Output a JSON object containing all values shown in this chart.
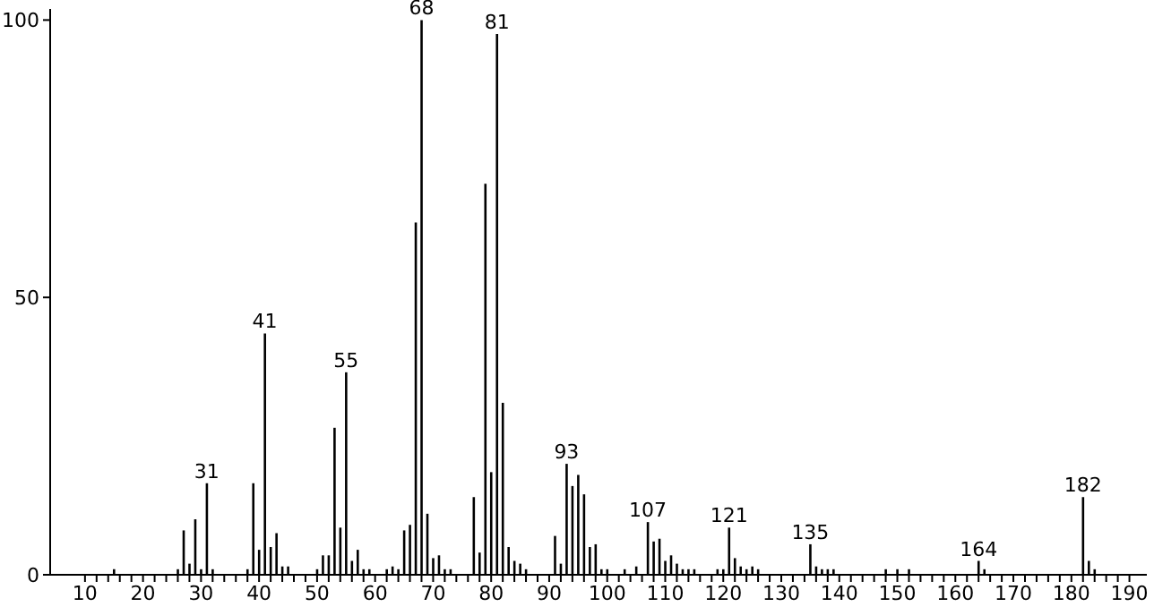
{
  "chart_data": {
    "type": "bar",
    "color": "#000000",
    "x": [
      15,
      26,
      27,
      28,
      29,
      30,
      31,
      32,
      38,
      39,
      40,
      41,
      42,
      43,
      44,
      45,
      50,
      51,
      52,
      53,
      54,
      55,
      56,
      57,
      58,
      59,
      62,
      63,
      64,
      65,
      66,
      67,
      68,
      69,
      70,
      71,
      72,
      73,
      77,
      78,
      79,
      80,
      81,
      82,
      83,
      84,
      85,
      86,
      91,
      92,
      93,
      94,
      95,
      96,
      97,
      98,
      99,
      100,
      103,
      105,
      107,
      108,
      109,
      110,
      111,
      112,
      113,
      114,
      115,
      119,
      120,
      121,
      122,
      123,
      124,
      125,
      126,
      135,
      136,
      137,
      138,
      139,
      148,
      150,
      152,
      164,
      165,
      182,
      183,
      184
    ],
    "values": [
      1,
      1,
      8,
      2,
      10,
      1,
      16.5,
      1,
      1,
      16.5,
      4.5,
      43.5,
      5,
      7.5,
      1.5,
      1.5,
      1,
      3.5,
      3.5,
      26.5,
      8.5,
      36.5,
      2.5,
      4.5,
      1,
      1,
      1,
      1.5,
      1,
      8,
      9,
      63.5,
      100,
      11,
      3,
      3.5,
      1,
      1,
      14,
      4,
      70.5,
      18.5,
      97.5,
      31,
      5,
      2.5,
      2,
      1,
      7,
      2,
      20,
      16,
      18,
      14.5,
      5,
      5.5,
      1,
      1,
      1,
      1.5,
      9.5,
      6,
      6.5,
      2.5,
      3.5,
      2,
      1,
      1,
      1,
      1,
      1,
      8.5,
      3,
      1.5,
      1,
      1.5,
      1,
      5.5,
      1.5,
      1,
      1,
      1,
      1,
      1,
      1,
      2.5,
      1,
      14,
      2.5,
      1
    ],
    "xlim": [
      4,
      193
    ],
    "xticks": [
      10,
      {
        "value": 12,
        "label": null
      },
      {
        "value": 14,
        "label": null
      },
      {
        "value": 16,
        "label": null
      },
      {
        "value": 18,
        "label": null
      },
      20,
      {
        "value": 22,
        "label": null
      },
      {
        "value": 24,
        "label": null
      },
      {
        "value": 26,
        "label": null
      },
      {
        "value": 28,
        "label": null
      },
      30,
      {
        "value": 32,
        "label": null
      },
      {
        "value": 34,
        "label": null
      },
      {
        "value": 36,
        "label": null
      },
      {
        "value": 38,
        "label": null
      },
      40,
      {
        "value": 42,
        "label": null
      },
      {
        "value": 44,
        "label": null
      },
      {
        "value": 46,
        "label": null
      },
      {
        "value": 48,
        "label": null
      },
      50,
      {
        "value": 52,
        "label": null
      },
      {
        "value": 54,
        "label": null
      },
      {
        "value": 56,
        "label": null
      },
      {
        "value": 58,
        "label": null
      },
      60,
      {
        "value": 62,
        "label": null
      },
      {
        "value": 64,
        "label": null
      },
      {
        "value": 66,
        "label": null
      },
      {
        "value": 68,
        "label": null
      },
      70,
      {
        "value": 72,
        "label": null
      },
      {
        "value": 74,
        "label": null
      },
      {
        "value": 76,
        "label": null
      },
      {
        "value": 78,
        "label": null
      },
      80,
      {
        "value": 82,
        "label": null
      },
      {
        "value": 84,
        "label": null
      },
      {
        "value": 86,
        "label": null
      },
      {
        "value": 88,
        "label": null
      },
      90,
      {
        "value": 92,
        "label": null
      },
      {
        "value": 94,
        "label": null
      },
      {
        "value": 96,
        "label": null
      },
      {
        "value": 98,
        "label": null
      },
      100,
      {
        "value": 102,
        "label": null
      },
      {
        "value": 104,
        "label": null
      },
      {
        "value": 106,
        "label": null
      },
      {
        "value": 108,
        "label": null
      },
      110,
      {
        "value": 112,
        "label": null
      },
      {
        "value": 114,
        "label": null
      },
      {
        "value": 116,
        "label": null
      },
      {
        "value": 118,
        "label": null
      },
      120,
      {
        "value": 122,
        "label": null
      },
      {
        "value": 124,
        "label": null
      },
      {
        "value": 126,
        "label": null
      },
      {
        "value": 128,
        "label": null
      },
      130,
      {
        "value": 132,
        "label": null
      },
      {
        "value": 134,
        "label": null
      },
      {
        "value": 136,
        "label": null
      },
      {
        "value": 138,
        "label": null
      },
      140,
      {
        "value": 142,
        "label": null
      },
      {
        "value": 144,
        "label": null
      },
      {
        "value": 146,
        "label": null
      },
      {
        "value": 148,
        "label": null
      },
      150,
      {
        "value": 152,
        "label": null
      },
      {
        "value": 154,
        "label": null
      },
      {
        "value": 156,
        "label": null
      },
      {
        "value": 158,
        "label": null
      },
      160,
      {
        "value": 162,
        "label": null
      },
      {
        "value": 164,
        "label": null
      },
      {
        "value": 166,
        "label": null
      },
      {
        "value": 168,
        "label": null
      },
      170,
      {
        "value": 172,
        "label": null
      },
      {
        "value": 174,
        "label": null
      },
      {
        "value": 176,
        "label": null
      },
      {
        "value": 178,
        "label": null
      },
      180,
      {
        "value": 182,
        "label": null
      },
      {
        "value": 184,
        "label": null
      },
      {
        "value": 186,
        "label": null
      },
      {
        "value": 188,
        "label": null
      },
      190
    ],
    "ylim": [
      0,
      102
    ],
    "yticks": [
      0,
      50,
      100
    ],
    "grid": false,
    "legend": false,
    "annotations": [
      {
        "text": "31",
        "x": 31,
        "y": 16.5
      },
      {
        "text": "41",
        "x": 41,
        "y": 43.5
      },
      {
        "text": "55",
        "x": 55,
        "y": 36.5
      },
      {
        "text": "68",
        "x": 68,
        "y": 100
      },
      {
        "text": "81",
        "x": 81,
        "y": 97.5
      },
      {
        "text": "93",
        "x": 93,
        "y": 20
      },
      {
        "text": "107",
        "x": 107,
        "y": 9.5
      },
      {
        "text": "121",
        "x": 121,
        "y": 8.5
      },
      {
        "text": "135",
        "x": 135,
        "y": 5.5
      },
      {
        "text": "164",
        "x": 164,
        "y": 2.5
      },
      {
        "text": "182",
        "x": 182,
        "y": 14
      }
    ]
  }
}
